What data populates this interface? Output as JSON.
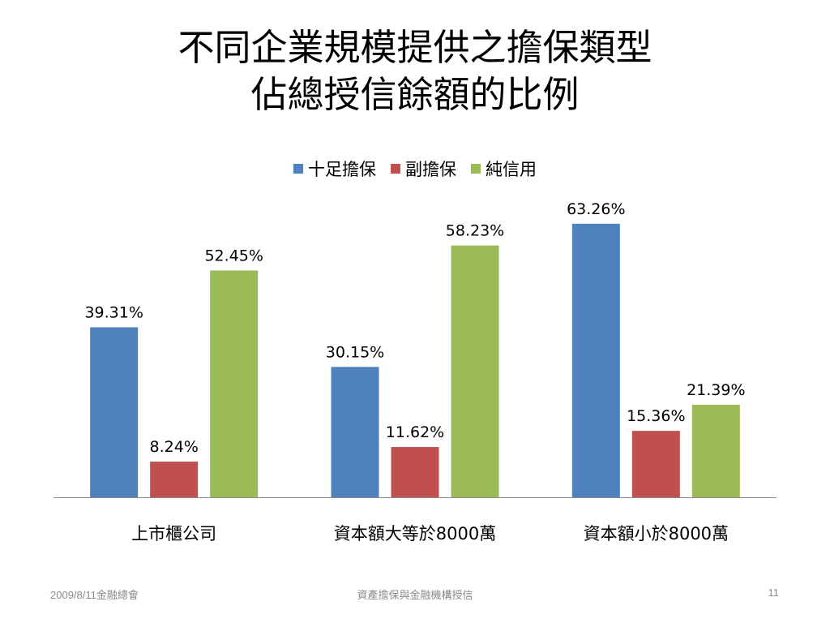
{
  "slide": {
    "title_line1": "不同企業規模提供之擔保類型",
    "title_line2": "佔總授信餘額的比例"
  },
  "footer": {
    "left": "2009/8/11金融總會",
    "center": "資產擔保與金融機構授信",
    "page": "11"
  },
  "chart_data": {
    "type": "bar",
    "categories": [
      "上市櫃公司",
      "資本額大等於8000萬",
      "資本額小於8000萬"
    ],
    "series": [
      {
        "name": "十足擔保",
        "values": [
          39.31,
          30.15,
          63.26
        ],
        "labels": [
          "39.31%",
          "30.15%",
          "63.26%"
        ],
        "color": "#4f81bd"
      },
      {
        "name": "副擔保",
        "values": [
          8.24,
          11.62,
          15.36
        ],
        "labels": [
          "8.24%",
          "11.62%",
          "15.36%"
        ],
        "color": "#c0504d"
      },
      {
        "name": "純信用",
        "values": [
          52.45,
          58.23,
          21.39
        ],
        "labels": [
          "52.45%",
          "58.23%",
          "21.39%"
        ],
        "color": "#9bbb59"
      }
    ],
    "legend_position": "top",
    "grid": false,
    "ylim": [
      0,
      70
    ]
  }
}
